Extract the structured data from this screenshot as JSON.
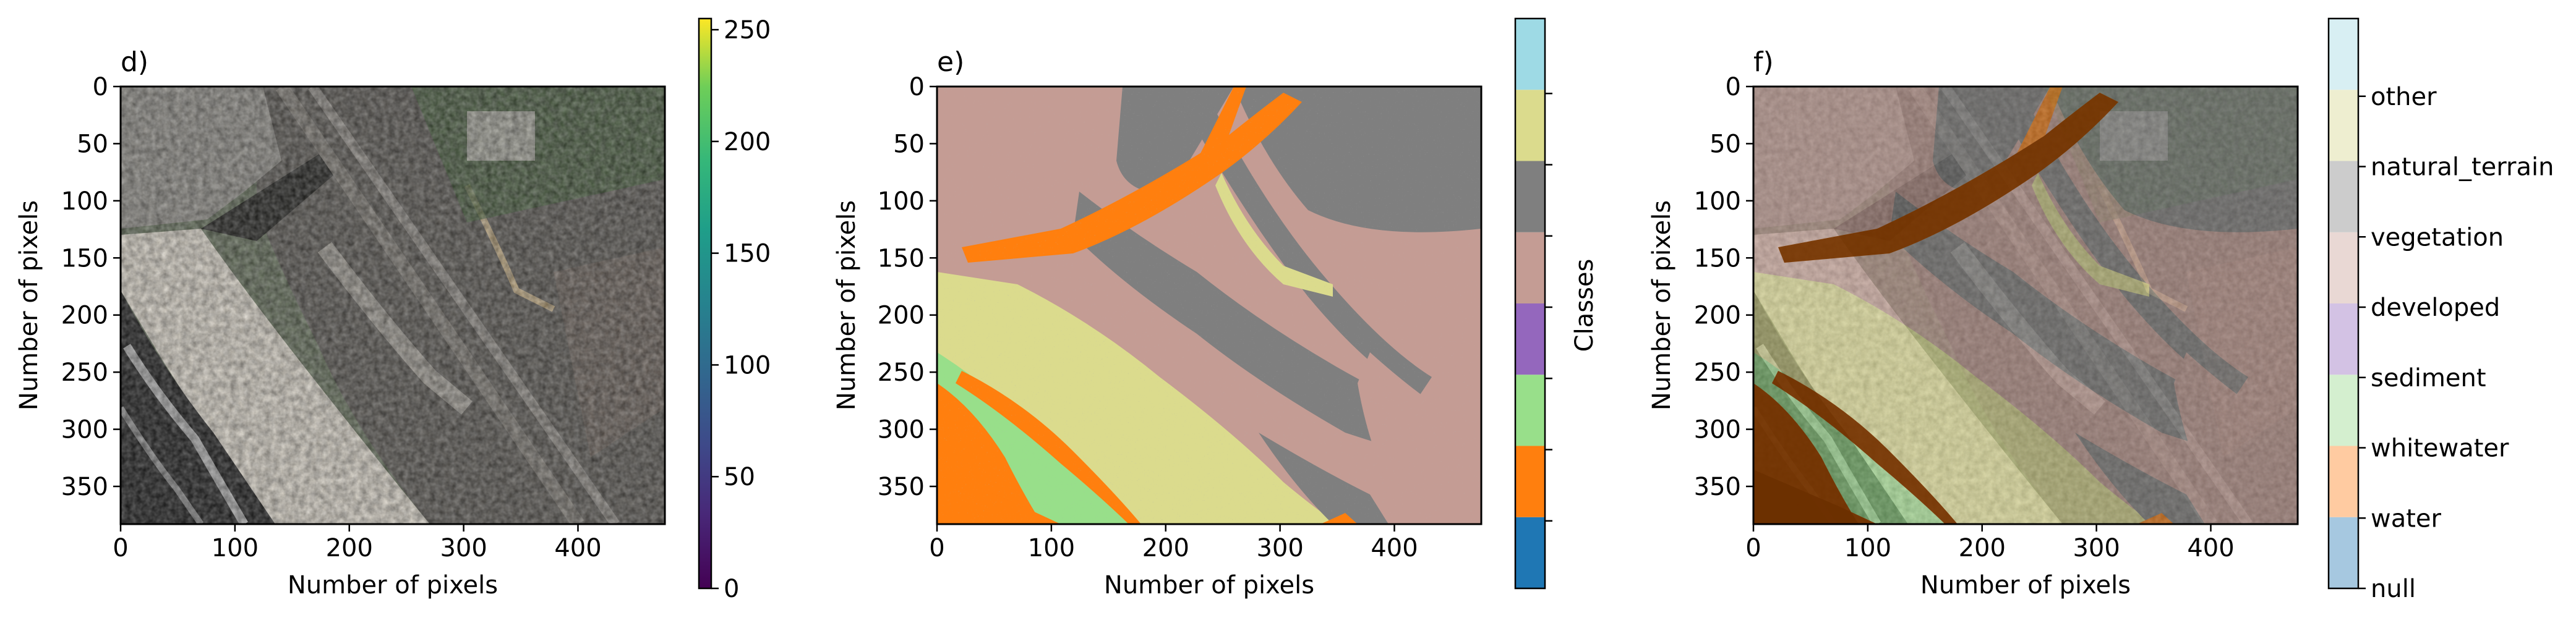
{
  "chart_data": [
    {
      "type": "image",
      "panel_label": "d)",
      "xlabel": "Number of pixels",
      "ylabel": "Number of pixels",
      "xlim": [
        0,
        476
      ],
      "ylim": [
        383,
        0
      ],
      "xticks": [
        0,
        100,
        200,
        300,
        400
      ],
      "yticks": [
        0,
        50,
        100,
        150,
        200,
        250,
        300,
        350
      ],
      "colorbar": {
        "colormap": "viridis",
        "range": [
          0,
          255
        ],
        "ticks": [
          0,
          50,
          100,
          150,
          200,
          250
        ]
      }
    },
    {
      "type": "heatmap",
      "panel_label": "e)",
      "xlabel": "Number of pixels",
      "ylabel": "Number of pixels",
      "xlim": [
        0,
        476
      ],
      "ylim": [
        383,
        0
      ],
      "xticks": [
        0,
        100,
        200,
        300,
        400
      ],
      "yticks": [
        0,
        50,
        100,
        150,
        200,
        250,
        300,
        350
      ],
      "colorbar": {
        "label": "Classes",
        "colors": [
          "#1f77b4",
          "#ff7f0e",
          "#98df8a",
          "#9467bd",
          "#c49c94",
          "#7f7f7f",
          "#dbdb8d",
          "#9edae5"
        ]
      }
    },
    {
      "type": "heatmap",
      "panel_label": "f)",
      "xlabel": "Number of pixels",
      "ylabel": "Number of pixels",
      "xlim": [
        0,
        476
      ],
      "ylim": [
        383,
        0
      ],
      "xticks": [
        0,
        100,
        200,
        300,
        400
      ],
      "yticks": [
        0,
        50,
        100,
        150,
        200,
        250,
        300,
        350
      ],
      "colorbar": {
        "classes": [
          "null",
          "water",
          "whitewater",
          "sediment",
          "developed",
          "vegetation",
          "natural_terrain",
          "other"
        ],
        "colors": [
          "#a6c8e0",
          "#ffcba1",
          "#d4efcf",
          "#d3c2e4",
          "#e9d8d4",
          "#cccccc",
          "#eeeed0",
          "#d8eff3"
        ]
      }
    }
  ],
  "palette": {
    "water_overlay": "#6b2f00",
    "sand": "#dbdb8d",
    "vegetation_green": "#3f6a3a",
    "urban": "#8a7a74"
  }
}
